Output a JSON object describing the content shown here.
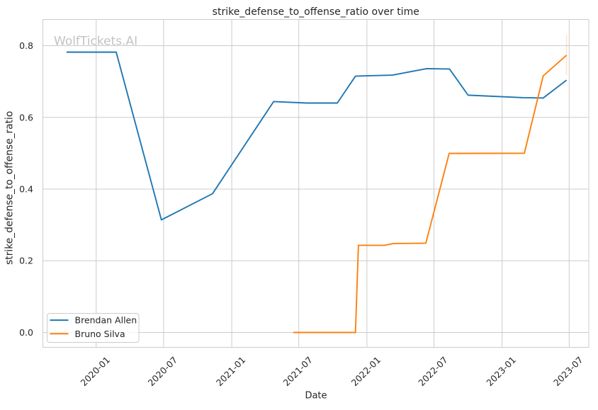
{
  "chart_data": {
    "type": "line",
    "title": "strike_defense_to_offense_ratio over time",
    "xlabel": "Date",
    "ylabel": "strike_defense_to_offense_ratio",
    "watermark": "WolfTickets.AI",
    "grid": true,
    "legend_position": "lower left",
    "xlim": [
      "2019-08-10",
      "2023-08-23"
    ],
    "ylim": [
      -0.0415,
      0.8731
    ],
    "x_ticks": [
      {
        "date": "2020-01-01",
        "label": "2020-01"
      },
      {
        "date": "2020-07-01",
        "label": "2020-07"
      },
      {
        "date": "2021-01-01",
        "label": "2021-01"
      },
      {
        "date": "2021-07-01",
        "label": "2021-07"
      },
      {
        "date": "2022-01-01",
        "label": "2022-01"
      },
      {
        "date": "2022-07-01",
        "label": "2022-07"
      },
      {
        "date": "2023-01-01",
        "label": "2023-01"
      },
      {
        "date": "2023-07-01",
        "label": "2023-07"
      }
    ],
    "y_ticks": [
      {
        "value": 0.0,
        "label": "0.0"
      },
      {
        "value": 0.2,
        "label": "0.2"
      },
      {
        "value": 0.4,
        "label": "0.4"
      },
      {
        "value": 0.6,
        "label": "0.6"
      },
      {
        "value": 0.8,
        "label": "0.8"
      }
    ],
    "series": [
      {
        "name": "Brendan Allen",
        "color": "#1f77b4",
        "points": [
          [
            "2019-10-13",
            0.782
          ],
          [
            "2020-02-24",
            0.782
          ],
          [
            "2020-06-25",
            0.314
          ],
          [
            "2020-11-10",
            0.387
          ],
          [
            "2021-04-24",
            0.644
          ],
          [
            "2021-07-23",
            0.64
          ],
          [
            "2021-10-13",
            0.64
          ],
          [
            "2021-12-01",
            0.715
          ],
          [
            "2022-03-11",
            0.718
          ],
          [
            "2022-06-11",
            0.736
          ],
          [
            "2022-08-12",
            0.735
          ],
          [
            "2022-10-01",
            0.662
          ],
          [
            "2023-02-28",
            0.655
          ],
          [
            "2023-04-22",
            0.654
          ],
          [
            "2023-06-24",
            0.704
          ]
        ]
      },
      {
        "name": "Bruno Silva",
        "color": "#ff7f0e",
        "points": [
          [
            "2021-06-16",
            0.0
          ],
          [
            "2021-12-01",
            0.0
          ],
          [
            "2021-12-09",
            0.243
          ],
          [
            "2022-02-17",
            0.243
          ],
          [
            "2022-03-13",
            0.248
          ],
          [
            "2022-06-09",
            0.249
          ],
          [
            "2022-08-11",
            0.4995
          ],
          [
            "2023-03-02",
            0.5
          ],
          [
            "2023-04-22",
            0.716
          ],
          [
            "2023-06-24",
            0.7735
          ]
        ],
        "errorbar": {
          "date": "2023-06-24",
          "lo": 0.718,
          "hi": 0.83
        }
      }
    ],
    "colors": {
      "grid": "#cccccc",
      "spine": "#cccccc",
      "text": "#262626",
      "watermark": "#c3c3c3",
      "errorbar": "rgba(255,127,14,0.22)",
      "legend_border": "#cccccc",
      "legend_bg": "rgba(255,255,255,0.8)"
    }
  }
}
